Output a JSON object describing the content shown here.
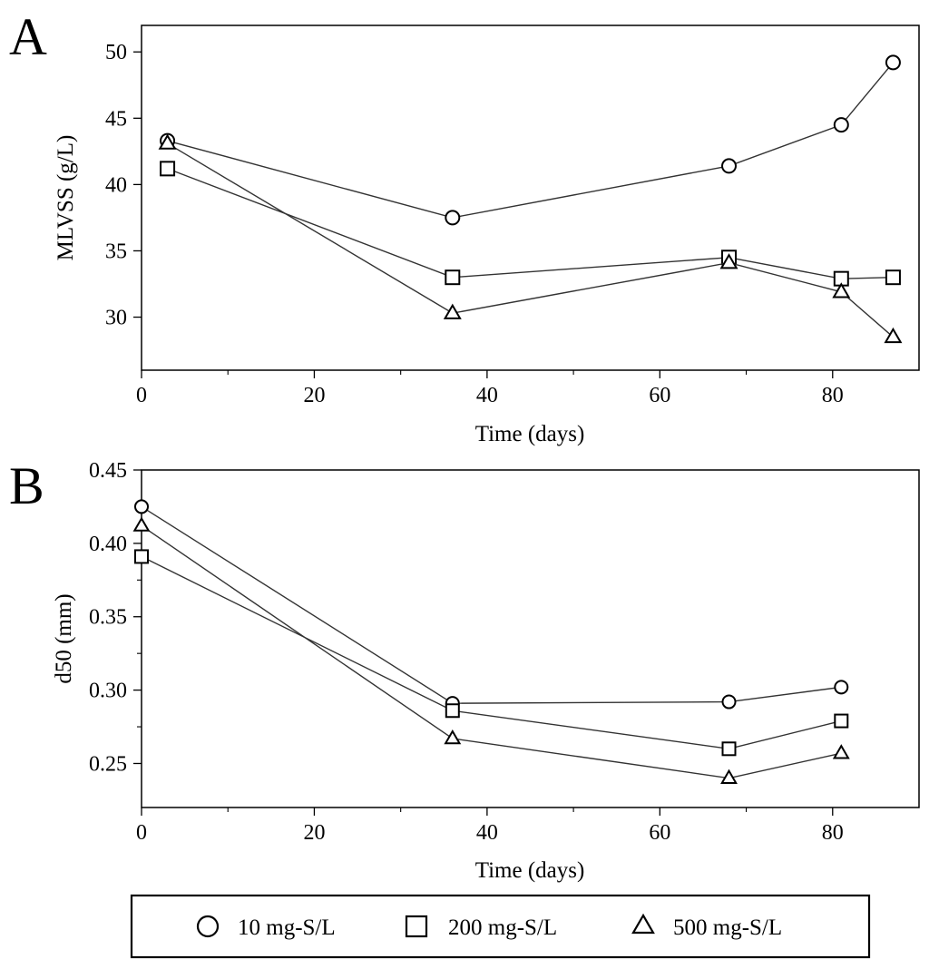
{
  "chart_data": [
    {
      "panel": "A",
      "type": "line",
      "xlabel": "Time (days)",
      "ylabel": "MLVSS (g/L)",
      "xlim": [
        0,
        90
      ],
      "ylim": [
        26,
        52
      ],
      "xticks": [
        0,
        20,
        40,
        60,
        80
      ],
      "yticks": [
        30,
        35,
        40,
        45,
        50
      ],
      "tick_labels_x": [
        "0",
        "20",
        "40",
        "60",
        "80"
      ],
      "tick_labels_y": [
        "30",
        "35",
        "40",
        "45",
        "50"
      ],
      "series": [
        {
          "name": "10 mg-S/L",
          "marker": "circle",
          "x": [
            3,
            36,
            68,
            81,
            87
          ],
          "y": [
            43.3,
            37.5,
            41.4,
            44.5,
            49.2
          ]
        },
        {
          "name": "200 mg-S/L",
          "marker": "square",
          "x": [
            3,
            36,
            68,
            81,
            87
          ],
          "y": [
            41.2,
            33.0,
            34.5,
            32.9,
            33.0
          ]
        },
        {
          "name": "500 mg-S/L",
          "marker": "triangle",
          "x": [
            3,
            36,
            68,
            81,
            87
          ],
          "y": [
            43.1,
            30.3,
            34.1,
            31.9,
            28.5
          ]
        }
      ]
    },
    {
      "panel": "B",
      "type": "line",
      "xlabel": "Time (days)",
      "ylabel": "d50 (mm)",
      "xlim": [
        0,
        90
      ],
      "ylim": [
        0.22,
        0.45
      ],
      "xticks": [
        0,
        20,
        40,
        60,
        80
      ],
      "yticks": [
        0.25,
        0.3,
        0.35,
        0.4,
        0.45
      ],
      "tick_labels_x": [
        "0",
        "20",
        "40",
        "60",
        "80"
      ],
      "tick_labels_y": [
        "0.25",
        "0.30",
        "0.35",
        "0.40",
        "0.45"
      ],
      "series": [
        {
          "name": "10 mg-S/L",
          "marker": "circle",
          "x": [
            0,
            36,
            68,
            81
          ],
          "y": [
            0.425,
            0.291,
            0.292,
            0.302
          ]
        },
        {
          "name": "200 mg-S/L",
          "marker": "square",
          "x": [
            0,
            36,
            68,
            81
          ],
          "y": [
            0.391,
            0.286,
            0.26,
            0.279
          ]
        },
        {
          "name": "500 mg-S/L",
          "marker": "triangle",
          "x": [
            0,
            36,
            68,
            81
          ],
          "y": [
            0.412,
            0.267,
            0.24,
            0.257
          ]
        }
      ]
    }
  ],
  "legend": {
    "entries": [
      {
        "label": "10 mg-S/L",
        "marker": "circle"
      },
      {
        "label": "200 mg-S/L",
        "marker": "square"
      },
      {
        "label": "500 mg-S/L",
        "marker": "triangle"
      }
    ]
  },
  "colors": {
    "ink": "#000000",
    "line": "#333333",
    "background": "#ffffff"
  }
}
